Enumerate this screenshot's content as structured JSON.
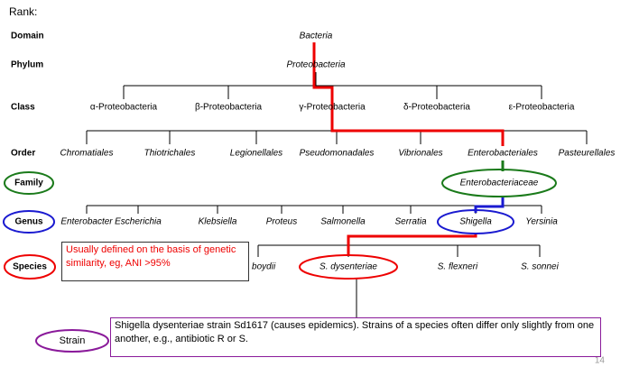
{
  "rank_heading": "Rank:",
  "ranks": [
    "Domain",
    "Phylum",
    "Class",
    "Order",
    "Family",
    "Genus",
    "Species",
    "Strain"
  ],
  "domain": "Bacteria",
  "phylum": "Proteobacteria",
  "classes": [
    "α-Proteobacteria",
    "β-Proteobacteria",
    "γ-Proteobacteria",
    "δ-Proteobacteria",
    "ε-Proteobacteria"
  ],
  "orders": [
    "Chromatiales",
    "Thiotrichales",
    "Legionellales",
    "Pseudomonadales",
    "Vibrionales",
    "Enterobacteriales",
    "Pasteurellales"
  ],
  "family": "Enterobacteriaceae",
  "genera": [
    "Enterobacter",
    "Escherichia",
    "Klebsiella",
    "Proteus",
    "Salmonella",
    "Serratia",
    "Shigella",
    "Yersinia"
  ],
  "species": [
    "S. boydii",
    "S. dysenteriae",
    "S. flexneri",
    "S. sonnei"
  ],
  "species_note": "Usually defined on the basis of genetic similarity, eg, ANI >95%",
  "strain_note": "Shigella dysenteriae strain Sd1617 (causes epidemics). Strains of a species often differ only slightly from one another, e.g., antibiotic R or S.",
  "page_number": "14"
}
